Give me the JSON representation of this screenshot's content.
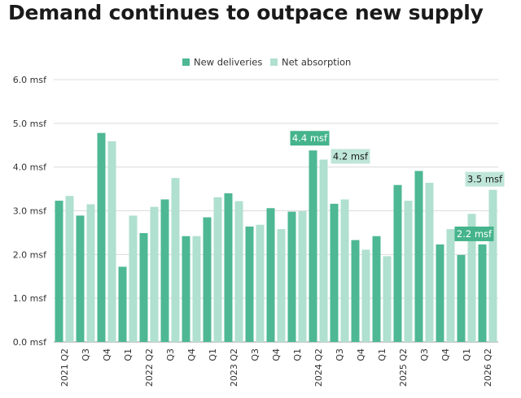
{
  "chart_data": {
    "type": "bar",
    "title": "Demand continues to outpace new supply",
    "xlabel": "",
    "ylabel": "",
    "ylim": [
      0,
      6
    ],
    "y_ticks": [
      "0.0 msf",
      "1.0 msf",
      "2.0 msf",
      "3.0 msf",
      "4.0 msf",
      "5.0 msf",
      "6.0 msf"
    ],
    "y_tick_values": [
      0,
      1,
      2,
      3,
      4,
      5,
      6
    ],
    "grid": true,
    "legend_position": "top",
    "categories": [
      "2021 Q2",
      "Q3",
      "Q4",
      "Q1",
      "2022 Q2",
      "Q3",
      "Q4",
      "Q1",
      "2023 Q2",
      "Q3",
      "Q4",
      "Q1",
      "2024 Q2",
      "Q3",
      "Q4",
      "Q1",
      "2025 Q2",
      "Q3",
      "Q4",
      "Q1",
      "2026 Q2"
    ],
    "series": [
      {
        "name": "New deliveries",
        "color": "#4db893",
        "values": [
          3.23,
          2.89,
          4.78,
          1.72,
          2.49,
          3.26,
          2.42,
          2.85,
          3.4,
          2.64,
          3.06,
          2.98,
          4.38,
          3.16,
          2.33,
          2.42,
          3.59,
          3.91,
          2.23,
          1.99,
          2.23
        ]
      },
      {
        "name": "Net absorption",
        "color": "#b0e0cf",
        "values": [
          3.34,
          3.15,
          4.59,
          2.89,
          3.09,
          3.75,
          2.42,
          3.31,
          3.22,
          2.68,
          2.58,
          2.99,
          4.17,
          3.26,
          2.11,
          1.96,
          3.23,
          3.64,
          2.58,
          2.93,
          3.48
        ]
      }
    ],
    "annotations": [
      {
        "text": "4.4 msf",
        "series": 0,
        "index": 12,
        "style": "dark"
      },
      {
        "text": "4.2 msf",
        "series": 1,
        "index": 12,
        "style": "light"
      },
      {
        "text": "2.2 msf",
        "series": 0,
        "index": 20,
        "style": "dark"
      },
      {
        "text": "3.5 msf",
        "series": 1,
        "index": 20,
        "style": "light"
      }
    ]
  }
}
